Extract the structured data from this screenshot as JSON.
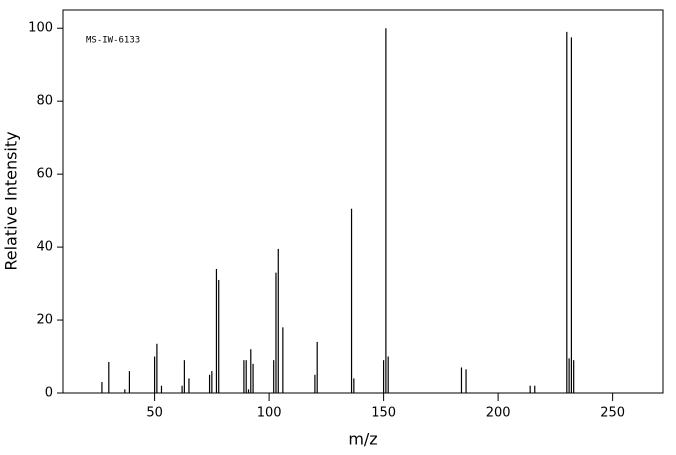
{
  "chart_data": {
    "type": "stem",
    "title": "MS-IW-6133",
    "x_label": "m/z",
    "y_label": "Relative Intensity",
    "x": [
      27,
      30,
      37,
      39,
      50,
      51,
      53,
      62,
      63,
      65,
      74,
      75,
      77,
      78,
      89,
      90,
      91,
      92,
      93,
      102,
      103,
      104,
      106,
      120,
      121,
      136,
      137,
      150,
      151,
      152,
      184,
      186,
      214,
      216,
      230,
      231,
      232,
      233
    ],
    "values": [
      3,
      8.5,
      1,
      6,
      10,
      13.5,
      2,
      2,
      9,
      4,
      5,
      6,
      34,
      31,
      9,
      9,
      1,
      12,
      8,
      9,
      33,
      39.5,
      18,
      5,
      14,
      50.5,
      4,
      9,
      100,
      10,
      7,
      6.5,
      2,
      2,
      99,
      9.5,
      97.5,
      9
    ],
    "color": "#000000",
    "xlim": [
      10,
      272
    ],
    "ylim": [
      0,
      105
    ],
    "xticks": [
      50,
      100,
      150,
      200,
      250
    ],
    "yticks": [
      0,
      20,
      40,
      60,
      80,
      100
    ]
  }
}
